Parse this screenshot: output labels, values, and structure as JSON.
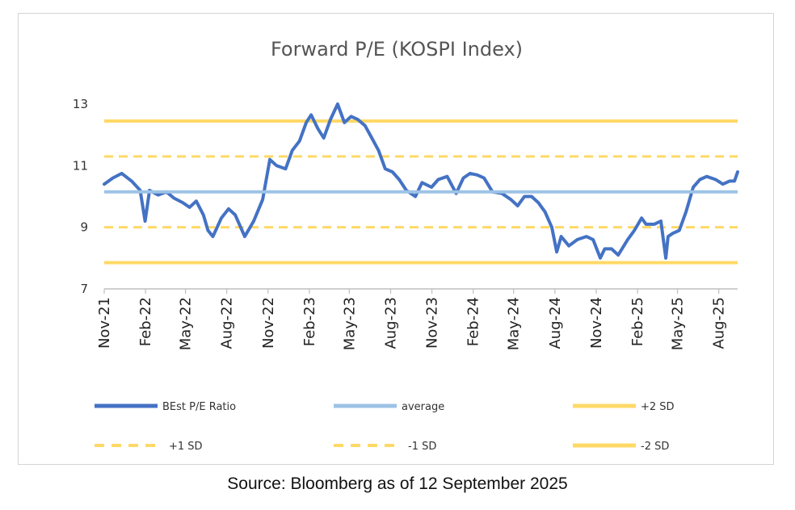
{
  "source_note": "Source: Bloomberg as of 12 September 2025",
  "colors": {
    "pe_line": "#4472c4",
    "average": "#9dc3e6",
    "sd_lines": "#ffd966",
    "axis": "#bfbfbf"
  },
  "chart_data": {
    "type": "line",
    "title": "Forward P/E (KOSPI Index)",
    "xlabel": "",
    "ylabel": "",
    "ylim": [
      7,
      13
    ],
    "yticks": [
      7,
      9,
      11,
      13
    ],
    "xlim": [
      "2021-11-01",
      "2025-09-12"
    ],
    "xtick_labels": [
      "Nov-21",
      "Feb-22",
      "May-22",
      "Aug-22",
      "Nov-22",
      "Feb-23",
      "May-23",
      "Aug-23",
      "Nov-23",
      "Feb-24",
      "May-24",
      "Aug-24",
      "Nov-24",
      "Feb-25",
      "May-25",
      "Aug-25"
    ],
    "grid": false,
    "legend_position": "bottom",
    "series": [
      {
        "name": "BEst P/E Ratio",
        "style": "solid-thick",
        "x": [
          "2021-11-01",
          "2021-11-20",
          "2021-12-10",
          "2022-01-01",
          "2022-01-20",
          "2022-01-31",
          "2022-02-10",
          "2022-03-01",
          "2022-03-20",
          "2022-04-05",
          "2022-04-25",
          "2022-05-10",
          "2022-05-25",
          "2022-06-10",
          "2022-06-20",
          "2022-07-01",
          "2022-07-20",
          "2022-08-05",
          "2022-08-20",
          "2022-09-10",
          "2022-09-30",
          "2022-10-20",
          "2022-11-05",
          "2022-11-20",
          "2022-12-10",
          "2022-12-25",
          "2023-01-10",
          "2023-01-25",
          "2023-02-05",
          "2023-02-20",
          "2023-03-05",
          "2023-03-20",
          "2023-04-05",
          "2023-04-20",
          "2023-05-05",
          "2023-05-20",
          "2023-06-05",
          "2023-06-20",
          "2023-07-05",
          "2023-07-20",
          "2023-08-05",
          "2023-08-20",
          "2023-09-05",
          "2023-09-25",
          "2023-10-10",
          "2023-10-31",
          "2023-11-15",
          "2023-12-05",
          "2023-12-25",
          "2024-01-10",
          "2024-01-25",
          "2024-02-10",
          "2024-02-25",
          "2024-03-15",
          "2024-04-05",
          "2024-04-25",
          "2024-05-10",
          "2024-05-25",
          "2024-06-10",
          "2024-06-25",
          "2024-07-10",
          "2024-07-25",
          "2024-08-05",
          "2024-08-15",
          "2024-09-01",
          "2024-09-20",
          "2024-10-10",
          "2024-10-25",
          "2024-11-10",
          "2024-11-20",
          "2024-12-05",
          "2024-12-20",
          "2025-01-10",
          "2025-01-25",
          "2025-02-10",
          "2025-02-20",
          "2025-03-10",
          "2025-03-25",
          "2025-04-05",
          "2025-04-10",
          "2025-04-20",
          "2025-05-05",
          "2025-05-20",
          "2025-06-05",
          "2025-06-20",
          "2025-07-05",
          "2025-07-25",
          "2025-08-10",
          "2025-08-25",
          "2025-09-05",
          "2025-09-12"
        ],
        "values": [
          10.4,
          10.6,
          10.75,
          10.5,
          10.2,
          9.2,
          10.2,
          10.05,
          10.15,
          9.95,
          9.8,
          9.65,
          9.85,
          9.4,
          8.9,
          8.7,
          9.3,
          9.6,
          9.4,
          8.7,
          9.2,
          9.9,
          11.2,
          11.0,
          10.9,
          11.5,
          11.8,
          12.4,
          12.65,
          12.2,
          11.9,
          12.5,
          13.0,
          12.4,
          12.6,
          12.5,
          12.3,
          11.9,
          11.5,
          10.9,
          10.8,
          10.55,
          10.2,
          10.0,
          10.45,
          10.3,
          10.55,
          10.65,
          10.1,
          10.6,
          10.75,
          10.7,
          10.6,
          10.15,
          10.1,
          9.9,
          9.7,
          10.0,
          10.0,
          9.8,
          9.5,
          9.0,
          8.2,
          8.7,
          8.4,
          8.6,
          8.7,
          8.6,
          8.0,
          8.3,
          8.3,
          8.1,
          8.6,
          8.9,
          9.3,
          9.1,
          9.1,
          9.2,
          8.0,
          8.7,
          8.8,
          8.9,
          9.5,
          10.3,
          10.55,
          10.65,
          10.55,
          10.4,
          10.5,
          10.5,
          10.8
        ]
      },
      {
        "name": "average",
        "style": "solid",
        "values": [
          10.15
        ]
      },
      {
        "name": "+2 SD",
        "style": "solid",
        "values": [
          12.45
        ]
      },
      {
        "name": "+1 SD",
        "style": "dashed",
        "values": [
          11.3
        ]
      },
      {
        "name": "-1 SD",
        "style": "dashed",
        "values": [
          9.0
        ]
      },
      {
        "name": "-2 SD",
        "style": "solid",
        "values": [
          7.85
        ]
      }
    ]
  }
}
